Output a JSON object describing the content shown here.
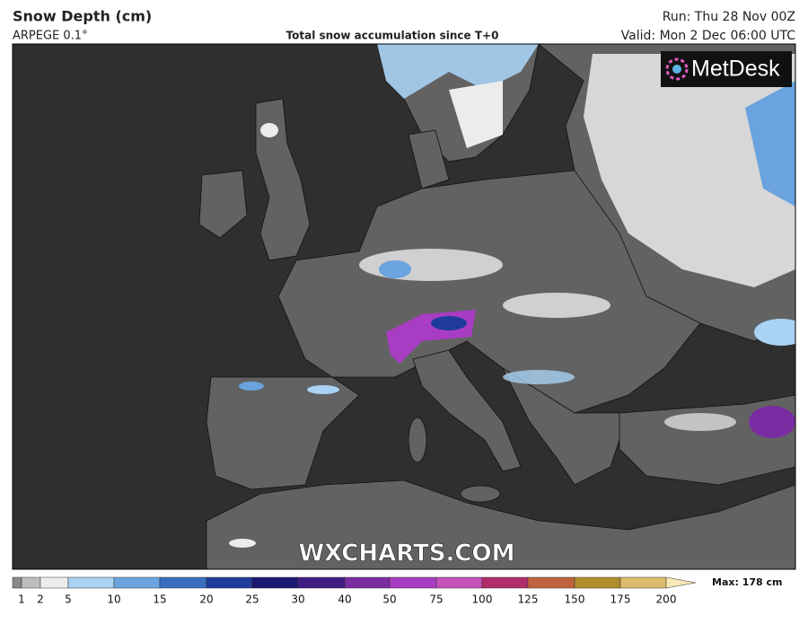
{
  "header": {
    "title": "Snow Depth (cm)",
    "model": "ARPEGE 0.1°",
    "description": "Total snow accumulation since T+0",
    "run": "Run: Thu 28 Nov 00Z",
    "valid": "Valid: Mon 2 Dec 06:00 UTC"
  },
  "logo": "MetDesk",
  "watermark": "WXCHARTS.COM",
  "legend": {
    "labels": [
      1,
      2,
      5,
      10,
      15,
      20,
      25,
      30,
      40,
      50,
      75,
      100,
      125,
      150,
      175,
      200
    ],
    "colors": [
      "#8a8a8a",
      "#bdbdbd",
      "#ececec",
      "#a9d2f4",
      "#6aa3df",
      "#3a6dc0",
      "#1f3c9c",
      "#1a1870",
      "#3f1c82",
      "#7a2ca2",
      "#a83cc2",
      "#c452b8",
      "#b02c6a",
      "#c0623e",
      "#b08e2e",
      "#dcbc6c",
      "#f8e8b4"
    ],
    "max": "Max: 178 cm"
  }
}
